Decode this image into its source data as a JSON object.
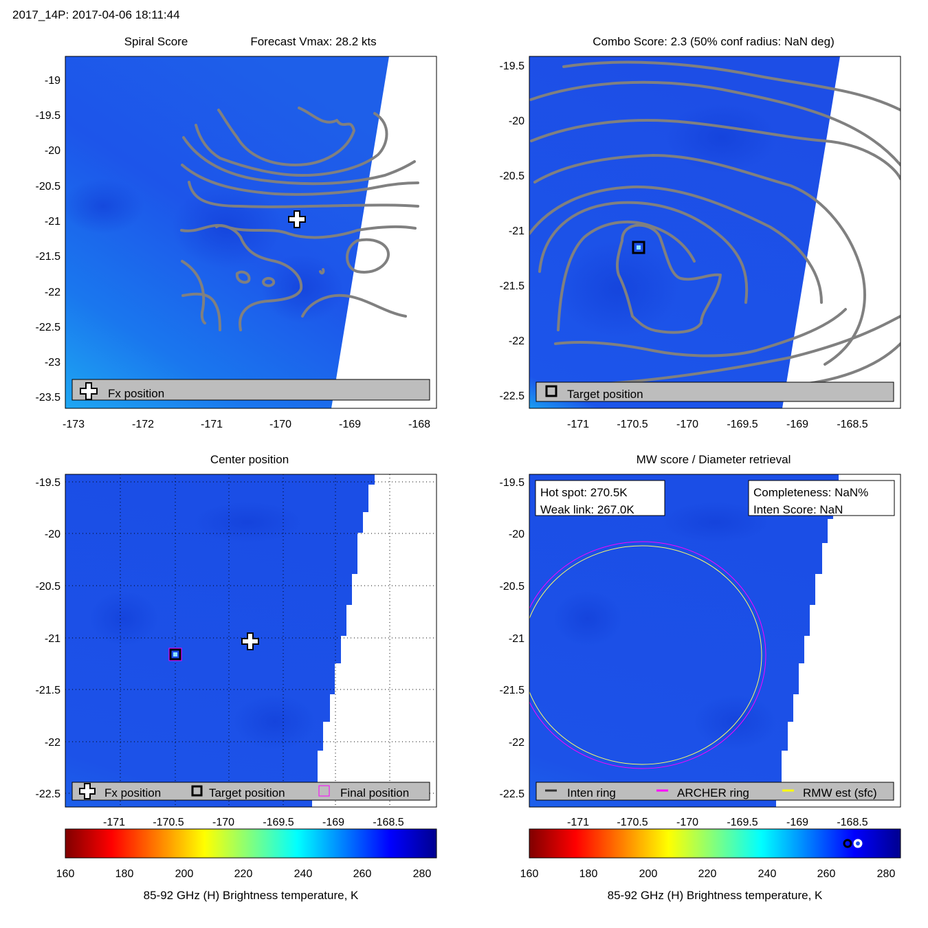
{
  "figure_title": "2017_14P: 2017-04-06 18:11:44",
  "colors": {
    "bg_blue": "#1c4fe8",
    "contour": "#7f7f7f",
    "legend_bg": "#bdbdbd",
    "archer_ring": "#ff00ff",
    "rmw_ring": "#ffff00",
    "inten_ring": "#333333",
    "grid": "#000000"
  },
  "panels": {
    "spiral": {
      "title_left": "Spiral Score",
      "title_right": "Forecast Vmax: 28.2 kts",
      "legend_label": "Fx position",
      "fx_position": {
        "lon": -169.77,
        "lat": -21.02
      },
      "xlim": [
        -173.1,
        -167.7
      ],
      "ylim": [
        -23.7,
        -18.7
      ],
      "xticks": [
        "-173",
        "-172",
        "-171",
        "-170",
        "-169",
        "-168"
      ],
      "yticks": [
        "-19",
        "-19.5",
        "-20",
        "-20.5",
        "-21",
        "-21.5",
        "-22",
        "-22.5",
        "-23",
        "-23.5"
      ]
    },
    "combo": {
      "title": "Combo Score: 2.3  (50% conf radius: NaN deg)",
      "legend_label": "Target position",
      "target_position": {
        "lon": -170.45,
        "lat": -21.15
      },
      "xlim": [
        -171.45,
        -168.05
      ],
      "ylim": [
        -22.65,
        -19.45
      ],
      "xticks": [
        "-171",
        "-170.5",
        "-170",
        "-169.5",
        "-169",
        "-168.5"
      ],
      "yticks": [
        "-19.5",
        "-20",
        "-20.5",
        "-21",
        "-21.5",
        "-22",
        "-22.5"
      ]
    },
    "center": {
      "title": "Center position",
      "legend": [
        "Fx position",
        "Target position",
        "Final position"
      ],
      "fx_position": {
        "lon": -169.77,
        "lat": -21.02
      },
      "target_position": {
        "lon": -170.45,
        "lat": -21.16
      },
      "xlim": [
        -171.45,
        -168.05
      ],
      "ylim": [
        -22.6,
        -19.45
      ],
      "xticks": [
        "-171",
        "-170.5",
        "-170",
        "-169.5",
        "-169",
        "-168.5"
      ],
      "yticks": [
        "-19.5",
        "-20",
        "-20.5",
        "-21",
        "-21.5",
        "-22",
        "-22.5"
      ]
    },
    "mw": {
      "title": "MW score / Diameter retrieval",
      "hot_spot": "Hot spot: 270.5K",
      "weak_link": "Weak link: 267.0K",
      "completeness": "Completeness: NaN%",
      "inten_score": "Inten Score: NaN",
      "legend": [
        "Inten ring",
        "ARCHER ring",
        "RMW est (sfc)"
      ],
      "ring_center": {
        "lon": -170.45,
        "lat": -21.15
      },
      "archer_radius_deg": 1.1,
      "rmw_radius_deg": 1.06,
      "xlim": [
        -171.45,
        -168.05
      ],
      "ylim": [
        -22.6,
        -19.45
      ],
      "xticks": [
        "-171",
        "-170.5",
        "-170",
        "-169.5",
        "-169",
        "-168.5"
      ],
      "yticks": [
        "-19.5",
        "-20",
        "-20.5",
        "-21",
        "-21.5",
        "-22",
        "-22.5"
      ]
    }
  },
  "colorbars": {
    "label": "85-92 GHz (H) Brightness temperature, K",
    "range": [
      160,
      285
    ],
    "ticks": [
      "160",
      "180",
      "200",
      "220",
      "240",
      "260",
      "280"
    ],
    "markers": {
      "weak_link": 267.0,
      "hot_spot": 270.5
    }
  },
  "chart_data": [
    {
      "type": "heatmap",
      "title": "Spiral Score",
      "subtitle": "Forecast Vmax: 28.2 kts",
      "xlim": [
        -173.1,
        -167.7
      ],
      "ylim": [
        -23.7,
        -18.7
      ],
      "legend": [
        "Fx position"
      ],
      "points": [
        {
          "name": "Fx position",
          "x": -169.77,
          "y": -21.02
        }
      ]
    },
    {
      "type": "heatmap",
      "title": "Combo Score: 2.3  (50% conf radius: NaN deg)",
      "xlim": [
        -171.45,
        -168.05
      ],
      "ylim": [
        -22.65,
        -19.45
      ],
      "legend": [
        "Target position"
      ],
      "points": [
        {
          "name": "Target position",
          "x": -170.45,
          "y": -21.15
        }
      ]
    },
    {
      "type": "heatmap",
      "title": "Center position",
      "xlim": [
        -171.45,
        -168.05
      ],
      "ylim": [
        -22.6,
        -19.45
      ],
      "legend": [
        "Fx position",
        "Target position",
        "Final position"
      ],
      "points": [
        {
          "name": "Fx position",
          "x": -169.77,
          "y": -21.02
        },
        {
          "name": "Target position",
          "x": -170.45,
          "y": -21.16
        }
      ]
    },
    {
      "type": "heatmap",
      "title": "MW score / Diameter retrieval",
      "xlim": [
        -171.45,
        -168.05
      ],
      "ylim": [
        -22.6,
        -19.45
      ],
      "legend": [
        "Inten ring",
        "ARCHER ring",
        "RMW est (sfc)"
      ],
      "annotations": [
        "Hot spot: 270.5K",
        "Weak link: 267.0K",
        "Completeness: NaN%",
        "Inten Score: NaN"
      ]
    }
  ]
}
